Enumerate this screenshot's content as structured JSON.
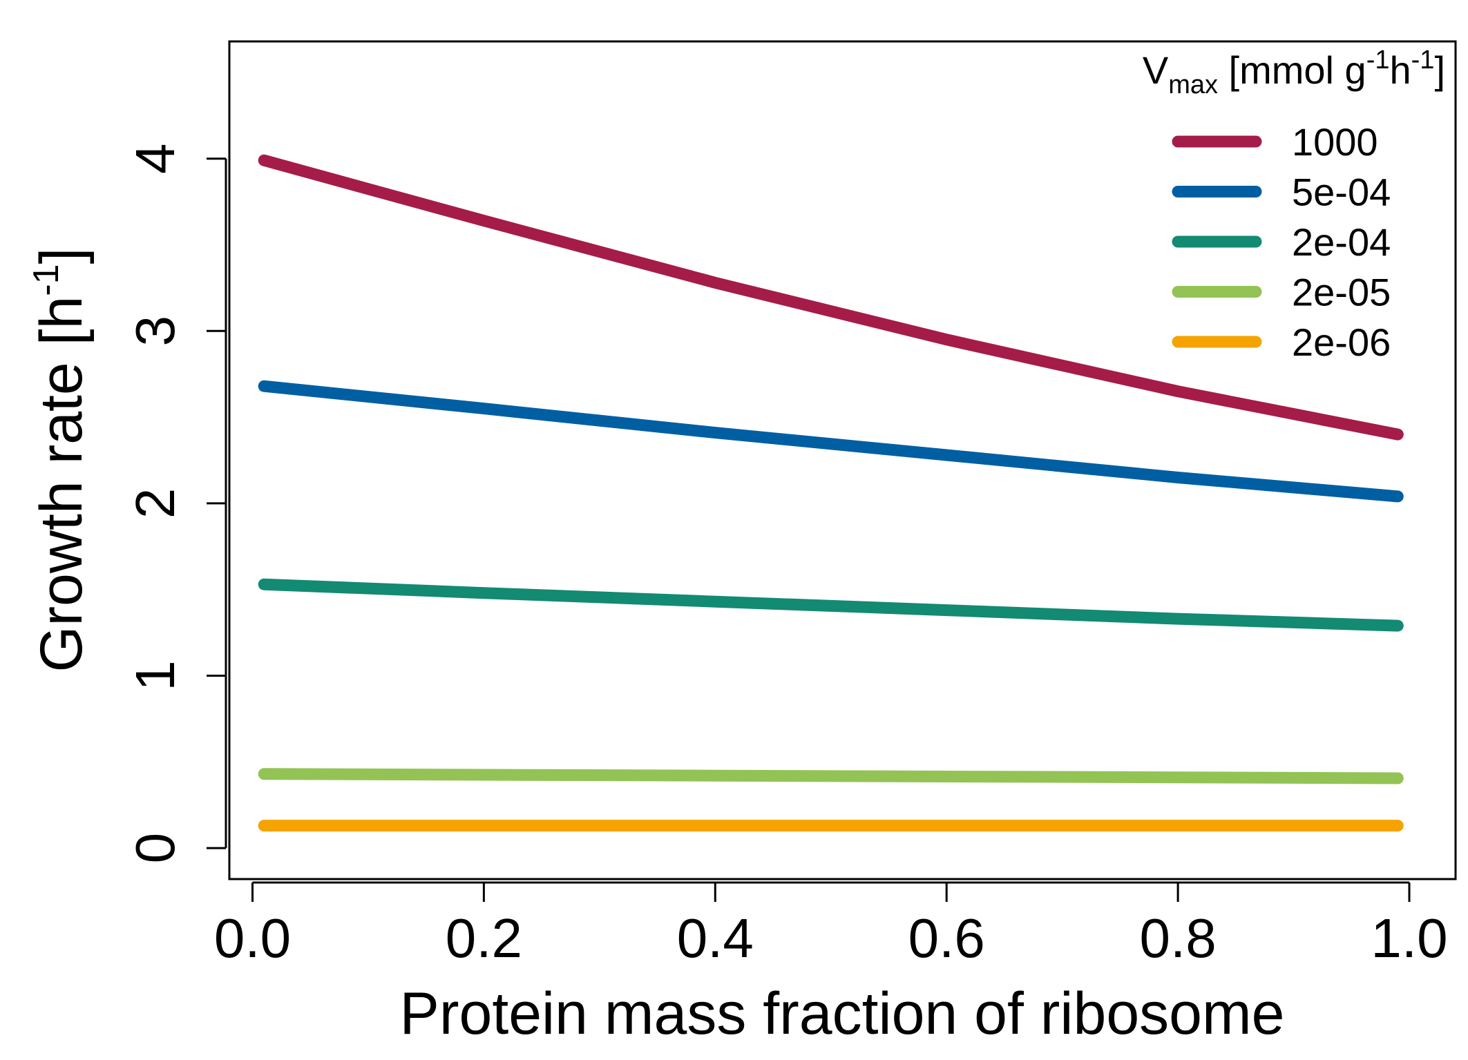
{
  "chart_data": {
    "type": "line",
    "xlabel": "Protein mass fraction of ribosome",
    "ylabel": {
      "main": "Growth rate [h",
      "sup": "-1",
      "close": "]"
    },
    "xlim": [
      -0.02,
      1.04
    ],
    "ylim": [
      -0.18,
      4.68
    ],
    "x_ticks": [
      0.0,
      0.2,
      0.4,
      0.6,
      0.8,
      1.0
    ],
    "x_tick_labels": [
      "0.0",
      "0.2",
      "0.4",
      "0.6",
      "0.8",
      "1.0"
    ],
    "y_ticks": [
      0,
      1,
      2,
      3,
      4
    ],
    "y_tick_labels": [
      "0",
      "1",
      "2",
      "3",
      "4"
    ],
    "grid": false,
    "legend": {
      "placement": "top-right",
      "title": {
        "v": "V",
        "sub": "max",
        "part1": " [mmol g",
        "sup1": "-1",
        "part2": "h",
        "sup2": "-1",
        "close": "]"
      }
    },
    "series": [
      {
        "name": "1000",
        "color": "#A51C48",
        "x": [
          0.01,
          0.2,
          0.4,
          0.6,
          0.8,
          0.99
        ],
        "y": [
          3.99,
          3.64,
          3.28,
          2.95,
          2.65,
          2.4
        ]
      },
      {
        "name": "5e-04",
        "color": "#005FA3",
        "x": [
          0.01,
          0.2,
          0.4,
          0.6,
          0.8,
          0.99
        ],
        "y": [
          2.68,
          2.55,
          2.41,
          2.28,
          2.15,
          2.04
        ]
      },
      {
        "name": "2e-04",
        "color": "#138A72",
        "x": [
          0.01,
          0.2,
          0.4,
          0.6,
          0.8,
          0.99
        ],
        "y": [
          1.53,
          1.48,
          1.43,
          1.38,
          1.33,
          1.29
        ]
      },
      {
        "name": "2e-05",
        "color": "#93C355",
        "x": [
          0.01,
          0.2,
          0.4,
          0.6,
          0.8,
          0.99
        ],
        "y": [
          0.43,
          0.425,
          0.42,
          0.415,
          0.41,
          0.405
        ]
      },
      {
        "name": "2e-06",
        "color": "#F5A300",
        "x": [
          0.01,
          0.2,
          0.4,
          0.6,
          0.8,
          0.99
        ],
        "y": [
          0.13,
          0.13,
          0.13,
          0.13,
          0.13,
          0.13
        ]
      }
    ]
  }
}
